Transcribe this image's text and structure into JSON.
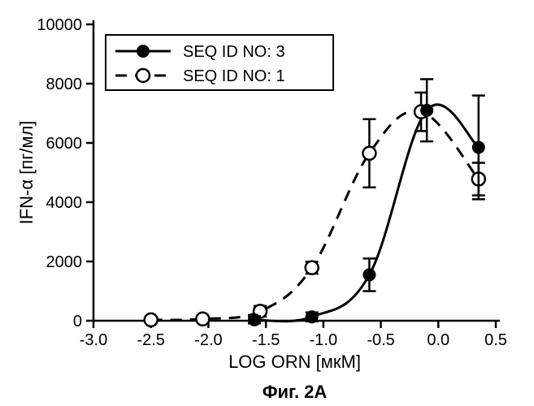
{
  "chart": {
    "type": "line-scatter",
    "background_color": "#ffffff",
    "line_color": "#000000",
    "axis": {
      "x": {
        "title": "LOG ORN [мкМ]",
        "min": -3.0,
        "max": 0.5,
        "ticks": [
          -3.0,
          -2.5,
          -2.0,
          -1.5,
          -1.0,
          -0.5,
          0.0,
          0.5
        ],
        "title_fontsize": 22,
        "tick_fontsize": 20
      },
      "y": {
        "title": "IFN-α [пг/мл]",
        "min": 0,
        "max": 10000,
        "ticks": [
          0,
          2000,
          4000,
          6000,
          8000,
          10000
        ],
        "title_fontsize": 22,
        "tick_fontsize": 20
      }
    },
    "series": [
      {
        "name": "SEQ ID NO: 3",
        "style": "solid",
        "marker": "filled-circle",
        "marker_radius": 7,
        "line_width": 3,
        "x": [
          -1.6,
          -1.1,
          -0.6,
          -0.1,
          0.35
        ],
        "y": [
          30,
          130,
          1550,
          7100,
          5850
        ],
        "err": [
          120,
          150,
          550,
          1050,
          1750
        ]
      },
      {
        "name": "SEQ ID NO: 1",
        "style": "dashed",
        "marker": "open-circle",
        "marker_radius": 8,
        "line_width": 3,
        "x": [
          -2.5,
          -2.05,
          -1.55,
          -1.1,
          -0.6,
          -0.15,
          0.35
        ],
        "y": [
          30,
          60,
          320,
          1790,
          5650,
          7050,
          4780
        ],
        "err": [
          0,
          0,
          180,
          200,
          1150,
          650,
          550
        ]
      }
    ],
    "legend": {
      "items": [
        "SEQ ID NO: 3",
        "SEQ ID NO: 1"
      ]
    },
    "caption": "Фиг. 2А"
  }
}
